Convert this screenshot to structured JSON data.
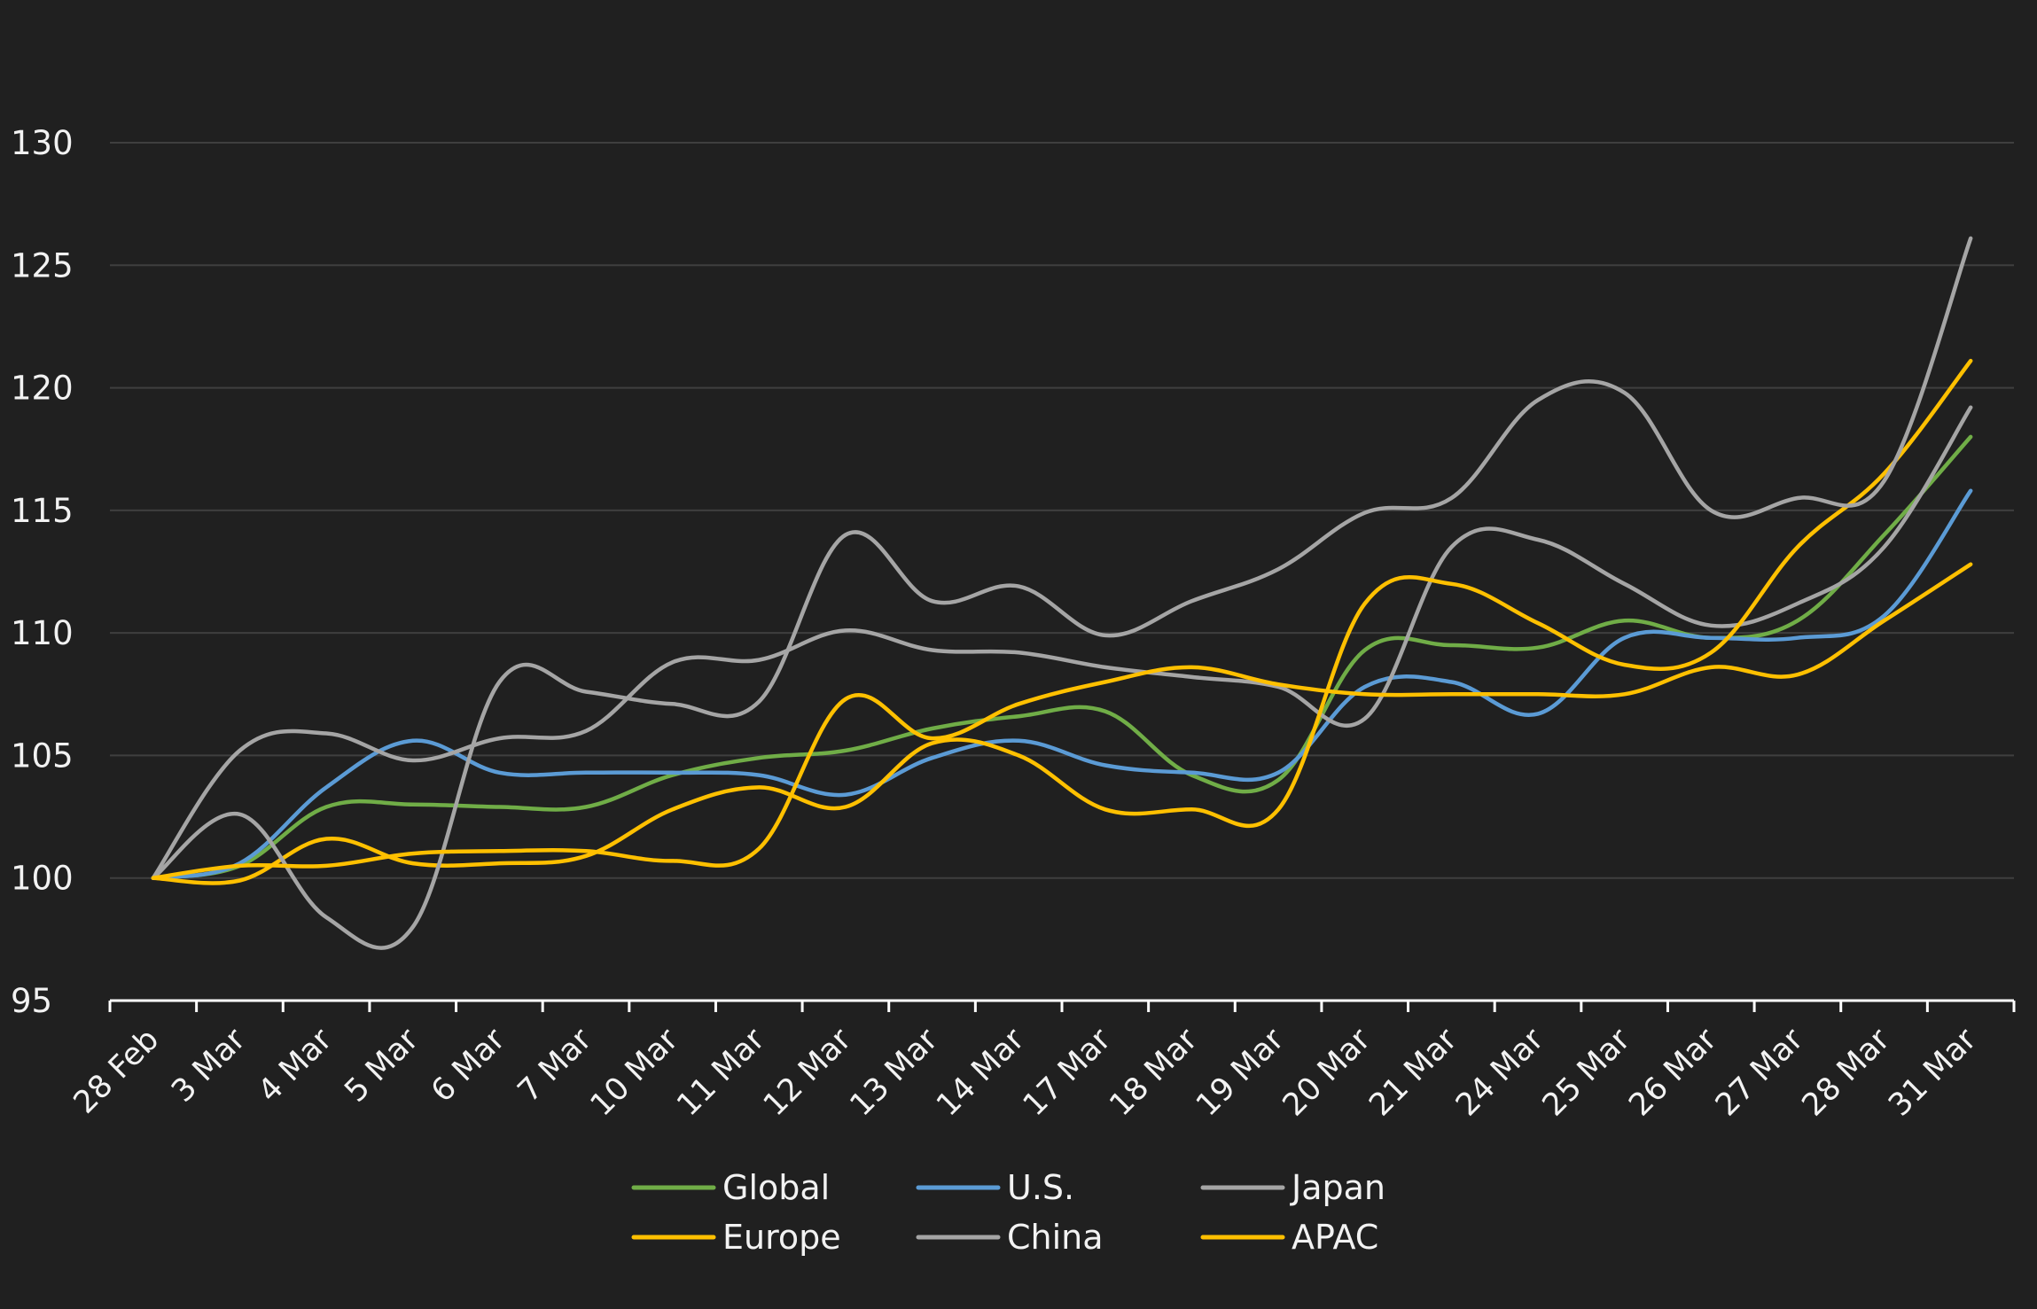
{
  "chart_data": {
    "type": "line",
    "categories": [
      "28 Feb",
      "3 Mar",
      "4 Mar",
      "5 Mar",
      "6 Mar",
      "7 Mar",
      "10 Mar",
      "11 Mar",
      "12 Mar",
      "13 Mar",
      "14 Mar",
      "17 Mar",
      "18 Mar",
      "19 Mar",
      "20 Mar",
      "21 Mar",
      "24 Mar",
      "25 Mar",
      "26 Mar",
      "27 Mar",
      "28 Mar",
      "31 Mar"
    ],
    "ylim": [
      95,
      130
    ],
    "yticks": [
      95,
      100,
      105,
      110,
      115,
      120,
      125,
      130
    ],
    "grid": true,
    "legend_position": "bottom",
    "series": [
      {
        "name": "Global",
        "color": "#70ad47",
        "values": [
          100,
          100.5,
          102.9,
          103.0,
          102.9,
          102.9,
          104.2,
          104.9,
          105.2,
          106.1,
          106.6,
          106.8,
          104.2,
          104.0,
          109.3,
          109.5,
          109.4,
          110.5,
          109.8,
          110.5,
          114.0,
          118.0
        ]
      },
      {
        "name": "U.S.",
        "color": "#5b9bd5",
        "values": [
          100,
          100.6,
          103.7,
          105.6,
          104.3,
          104.3,
          104.3,
          104.2,
          103.4,
          104.9,
          105.6,
          104.6,
          104.3,
          104.3,
          107.8,
          108.0,
          106.7,
          109.8,
          109.8,
          109.8,
          110.7,
          115.8
        ]
      },
      {
        "name": "Japan",
        "color": "#a5a5a5",
        "values": [
          100,
          105.2,
          105.9,
          104.8,
          105.7,
          106.0,
          108.8,
          108.9,
          110.1,
          109.3,
          109.2,
          108.6,
          108.2,
          107.8,
          106.5,
          113.5,
          113.8,
          112.0,
          110.3,
          111.2,
          113.5,
          119.2
        ]
      },
      {
        "name": "Europe",
        "color": "#ffc000",
        "values": [
          100,
          99.9,
          101.6,
          100.6,
          100.6,
          100.9,
          102.8,
          103.7,
          102.9,
          105.5,
          105.0,
          102.8,
          102.8,
          102.8,
          111.2,
          112.0,
          110.4,
          108.7,
          109.2,
          113.5,
          116.5,
          121.1
        ]
      },
      {
        "name": "China",
        "color": "#a5a5a5",
        "values": [
          100,
          102.6,
          98.4,
          98.0,
          108.0,
          107.6,
          107.1,
          107.2,
          114.0,
          111.3,
          111.9,
          109.9,
          111.3,
          112.6,
          114.9,
          115.5,
          119.5,
          119.8,
          115.0,
          115.5,
          116.2,
          126.1
        ]
      },
      {
        "name": "APAC",
        "color": "#ffc000",
        "values": [
          100,
          100.5,
          100.5,
          101.0,
          101.1,
          101.1,
          100.7,
          101.2,
          107.3,
          105.7,
          107.1,
          108.0,
          108.6,
          107.9,
          107.5,
          107.5,
          107.5,
          107.5,
          108.6,
          108.3,
          110.5,
          112.8
        ]
      }
    ]
  }
}
